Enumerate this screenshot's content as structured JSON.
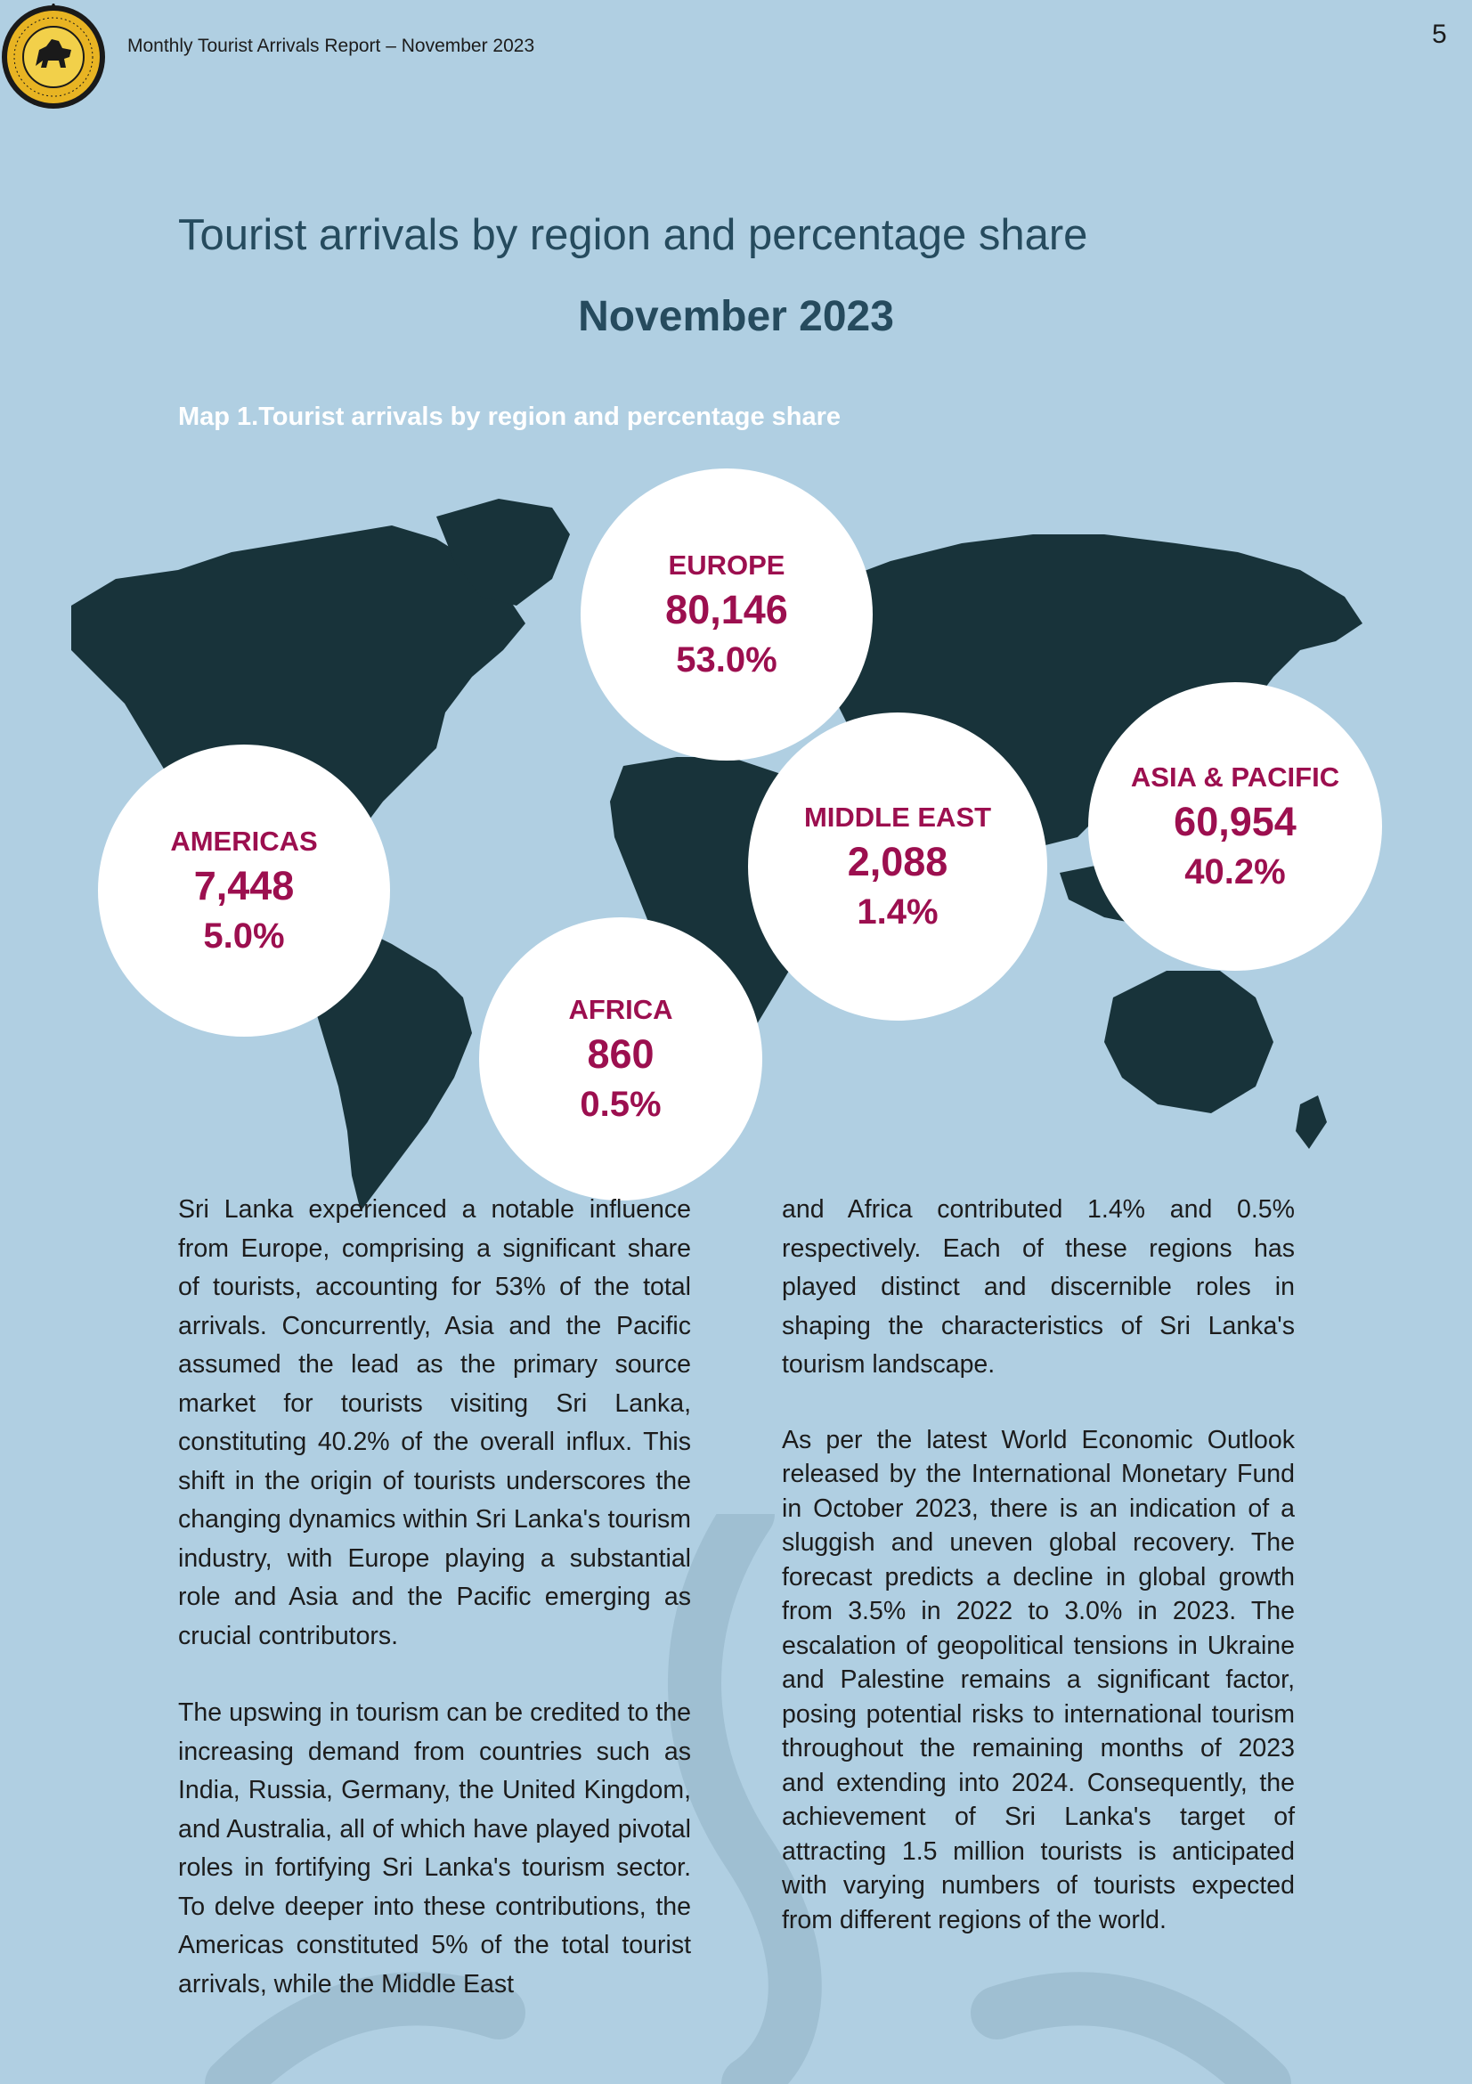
{
  "header": {
    "title": "Monthly Tourist Arrivals Report – November 2023",
    "page_number": "5"
  },
  "page": {
    "title": "Tourist arrivals by region and percentage share",
    "period": "November 2023",
    "map_caption": "Map 1.Tourist arrivals by region and percentage share"
  },
  "regions": {
    "europe": {
      "name": "EUROPE",
      "arrivals": "80,146",
      "share": "53.0%"
    },
    "americas": {
      "name": "AMERICAS",
      "arrivals": "7,448",
      "share": "5.0%"
    },
    "africa": {
      "name": "AFRICA",
      "arrivals": "860",
      "share": "0.5%"
    },
    "middle_east": {
      "name": "MIDDLE EAST",
      "arrivals": "2,088",
      "share": "1.4%"
    },
    "asia_pacific": {
      "name": "ASIA & PACIFIC",
      "arrivals": "60,954",
      "share": "40.2%"
    }
  },
  "body": {
    "left_p1": "Sri Lanka experienced a notable influence from Europe, comprising a significant share of tourists, accounting for 53% of the total arrivals. Concurrently, Asia and the Pacific assumed the lead as the primary source market for tourists visiting Sri Lanka, constituting 40.2% of the overall influx. This shift in the origin of tourists underscores the changing dynamics within Sri Lanka's tourism industry, with Europe playing a substantial role and Asia and the Pacific emerging as crucial contributors.",
    "left_p2": "The upswing in tourism can be credited to the increasing demand from countries such as India, Russia, Germany, the United Kingdom, and Australia, all of which have played pivotal roles in fortifying Sri Lanka's tourism sector. To delve deeper into these contributions, the Americas constituted 5% of the total tourist arrivals, while the Middle East",
    "right_p1": "and Africa contributed 1.4% and 0.5% respectively. Each of these regions has played distinct and discernible roles in shaping the characteristics of Sri Lanka's tourism landscape.",
    "right_p2": "As per the latest World Economic Outlook released by the International Monetary Fund in October 2023, there is an indication of a sluggish and uneven global recovery. The forecast predicts a decline in global growth from 3.5% in 2022 to 3.0% in 2023. The escalation of geopolitical tensions in Ukraine and Palestine remains a significant factor, posing potential risks to international tourism throughout the remaining months of 2023 and extending into 2024. Consequently, the achievement of Sri Lanka's target of attracting 1.5 million tourists is anticipated with varying numbers of tourists expected from different regions of the world."
  },
  "colors": {
    "background": "#b0cfe2",
    "map_land": "#18333a",
    "region_text": "#9c0f4f",
    "title": "#264b5e"
  },
  "icons": {
    "logo": "sri-lanka-tourism-emblem-icon",
    "watermark": "ornament-watermark-icon"
  }
}
